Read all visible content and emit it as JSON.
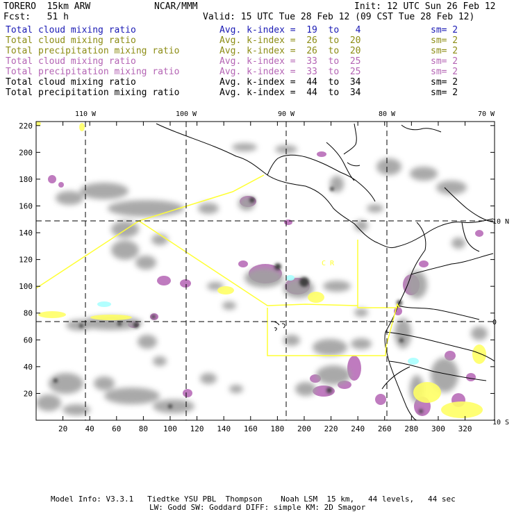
{
  "header": {
    "model": "TORERO  15km ARW",
    "org": "NCAR/MMM",
    "init": "Init: 12 UTC Sun 26 Feb 12",
    "fcst": "Fcst:   51 h",
    "valid": "Valid: 15 UTC Tue 28 Feb 12 (09 CST Tue 28 Feb 12)"
  },
  "legend": [
    {
      "field": "Total cloud mixing ratio",
      "stat": "Avg. k-index =  19  to   4",
      "sm": "sm= 2",
      "color": "#1a1ab4"
    },
    {
      "field": "Total cloud mixing ratio",
      "stat": "Avg. k-index =  26  to  20",
      "sm": "sm= 2",
      "color": "#8c8c14"
    },
    {
      "field": "Total precipitation mixing ratio",
      "stat": "Avg. k-index =  26  to  20",
      "sm": "sm= 2",
      "color": "#8c8c14"
    },
    {
      "field": "Total cloud mixing ratio",
      "stat": "Avg. k-index =  33  to  25",
      "sm": "sm= 2",
      "color": "#b464b4"
    },
    {
      "field": "Total precipitation mixing ratio",
      "stat": "Avg. k-index =  33  to  25",
      "sm": "sm= 2",
      "color": "#b464b4"
    },
    {
      "field": "Total cloud mixing ratio",
      "stat": "Avg. k-index =  44  to  34",
      "sm": "sm= 2",
      "color": "#000000"
    },
    {
      "field": "Total precipitation mixing ratio",
      "stat": "Avg. k-index =  44  to  34",
      "sm": "sm= 2",
      "color": "#000000"
    }
  ],
  "map": {
    "x_ticks": [
      "20",
      "40",
      "60",
      "80",
      "100",
      "120",
      "140",
      "160",
      "180",
      "200",
      "220",
      "240",
      "260",
      "280",
      "300",
      "320"
    ],
    "y_ticks": [
      "20",
      "40",
      "60",
      "80",
      "100",
      "120",
      "140",
      "160",
      "180",
      "200",
      "220"
    ],
    "lon_labels": [
      "110 W",
      "100 W",
      "90 W",
      "80 W",
      "70 W"
    ],
    "lat_labels": [
      "10 N",
      "0",
      "10 S"
    ],
    "region_labels": [
      "C  R"
    ],
    "colors": {
      "grid": "#000000",
      "border": "#000000",
      "domain": "#ffff33",
      "cloud_gray": "#a0a0a0",
      "cloud_dark": "#505050",
      "precip_magenta": "#b464b4",
      "light_yellow": "#ffff66",
      "cyan": "#aaffff"
    }
  },
  "footer": {
    "line1": "Model Info: V3.3.1   Tiedtke YSU PBL  Thompson    Noah LSM  15 km,   44 levels,   44 sec",
    "line2": "LW: Godd SW: Goddard DIFF: simple KM: 2D Smagor"
  }
}
